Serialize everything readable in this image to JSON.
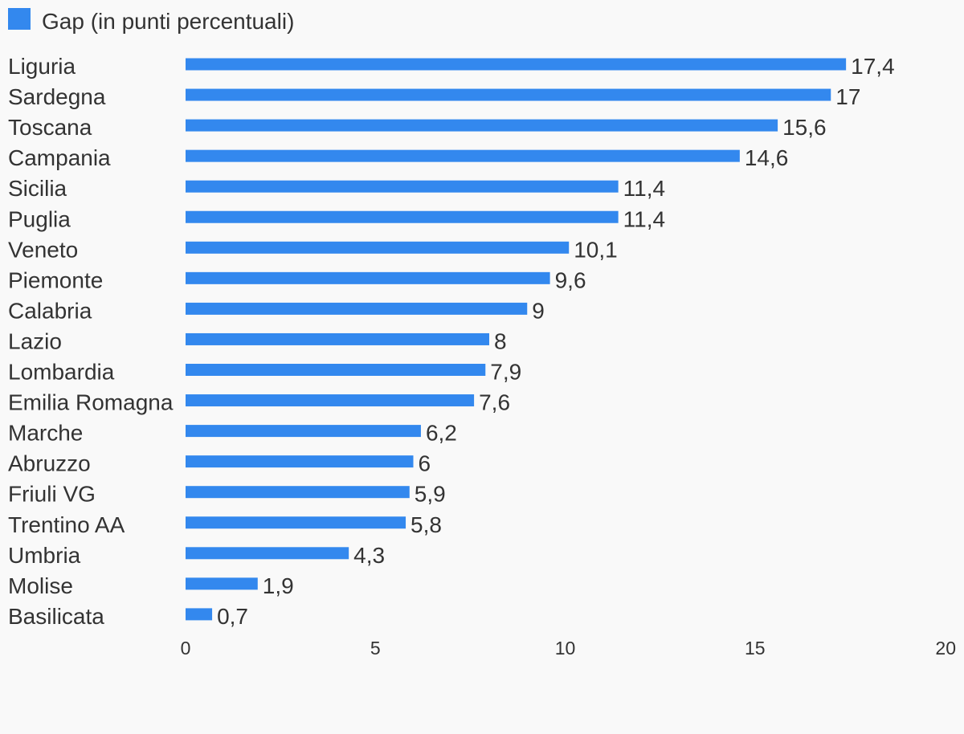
{
  "chart_data": {
    "type": "bar",
    "orientation": "horizontal",
    "title": "",
    "xlabel": "",
    "ylabel": "",
    "legend": {
      "position": "top-left"
    },
    "xlim": [
      0,
      20
    ],
    "xticks": [
      {
        "value": 0,
        "label": "0"
      },
      {
        "value": 5,
        "label": "5"
      },
      {
        "value": 10,
        "label": "10"
      },
      {
        "value": 15,
        "label": "15"
      },
      {
        "value": 20,
        "label": "20"
      }
    ],
    "grid": false,
    "categories": [
      "Liguria",
      "Sardegna",
      "Toscana",
      "Campania",
      "Sicilia",
      "Puglia",
      "Veneto",
      "Piemonte",
      "Calabria",
      "Lazio",
      "Lombardia",
      "Emilia Romagna",
      "Marche",
      "Abruzzo",
      "Friuli VG",
      "Trentino AA",
      "Umbria",
      "Molise",
      "Basilicata"
    ],
    "series": [
      {
        "name": "Gap (in punti percentuali)",
        "color": "#3388ee",
        "values": [
          17.4,
          17,
          15.6,
          14.6,
          11.4,
          11.4,
          10.1,
          9.6,
          9,
          8,
          7.9,
          7.6,
          6.2,
          6,
          5.9,
          5.8,
          4.3,
          1.9,
          0.7
        ],
        "value_labels": [
          "17,4",
          "17",
          "15,6",
          "14,6",
          "11,4",
          "11,4",
          "10,1",
          "9,6",
          "9",
          "8",
          "7,9",
          "7,6",
          "6,2",
          "6",
          "5,9",
          "5,8",
          "4,3",
          "1,9",
          "0,7"
        ]
      }
    ]
  }
}
